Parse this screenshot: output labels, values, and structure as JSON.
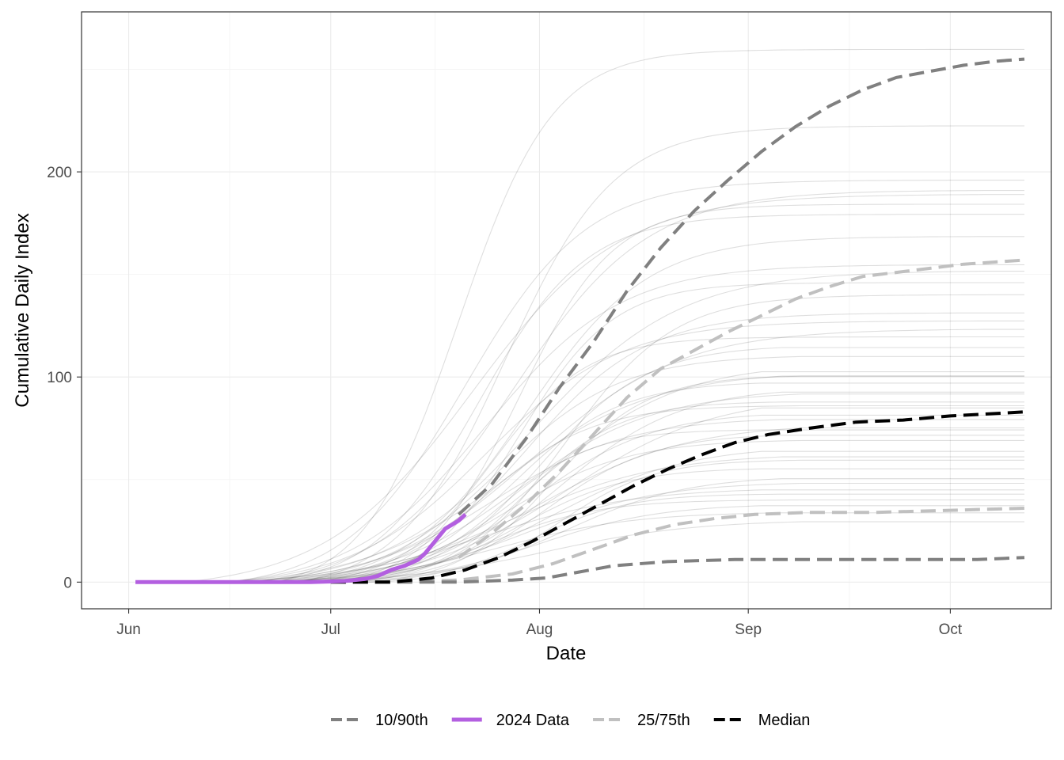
{
  "chart_data": {
    "type": "line",
    "title": "",
    "xlabel": "Date",
    "ylabel": "Cumulative Daily Index",
    "x_ticks": [
      "Jun",
      "Jul",
      "Aug",
      "Sep",
      "Oct"
    ],
    "x_tick_dates": [
      "2024-06-01",
      "2024-07-01",
      "2024-08-01",
      "2024-09-01",
      "2024-10-01"
    ],
    "xlim": [
      "2024-05-25",
      "2024-10-16"
    ],
    "y_ticks": [
      0,
      100,
      200
    ],
    "ylim": [
      -13,
      278
    ],
    "grid": true,
    "legend_position": "bottom",
    "legend": [
      {
        "label": "10/90th",
        "color": "#808080",
        "dash": true
      },
      {
        "label": "2024 Data",
        "color": "#b35fe0",
        "dash": false
      },
      {
        "label": "25/75th",
        "color": "#c0c0c0",
        "dash": true
      },
      {
        "label": "Median",
        "color": "#000000",
        "dash": true
      }
    ],
    "series": [
      {
        "name": "10/90th",
        "role": "upper",
        "color": "#808080",
        "points": [
          [
            "2024-07-20",
            33
          ],
          [
            "2024-07-25",
            48
          ],
          [
            "2024-07-30",
            70
          ],
          [
            "2024-08-04",
            95
          ],
          [
            "2024-08-09",
            117
          ],
          [
            "2024-08-14",
            142
          ],
          [
            "2024-08-19",
            163
          ],
          [
            "2024-08-24",
            181
          ],
          [
            "2024-08-29",
            196
          ],
          [
            "2024-09-03",
            210
          ],
          [
            "2024-09-08",
            222
          ],
          [
            "2024-09-13",
            232
          ],
          [
            "2024-09-18",
            240
          ],
          [
            "2024-09-23",
            246
          ],
          [
            "2024-09-28",
            249
          ],
          [
            "2024-10-03",
            252
          ],
          [
            "2024-10-08",
            254
          ],
          [
            "2024-10-12",
            255
          ]
        ]
      },
      {
        "name": "10/90th",
        "role": "lower",
        "color": "#808080",
        "points": [
          [
            "2024-07-01",
            0
          ],
          [
            "2024-07-10",
            0
          ],
          [
            "2024-07-20",
            0
          ],
          [
            "2024-07-28",
            1
          ],
          [
            "2024-08-02",
            2
          ],
          [
            "2024-08-07",
            5
          ],
          [
            "2024-08-12",
            8
          ],
          [
            "2024-08-20",
            10
          ],
          [
            "2024-08-30",
            11
          ],
          [
            "2024-09-10",
            11
          ],
          [
            "2024-09-25",
            11
          ],
          [
            "2024-10-05",
            11
          ],
          [
            "2024-10-12",
            12
          ]
        ]
      },
      {
        "name": "25/75th",
        "role": "upper",
        "color": "#c0c0c0",
        "points": [
          [
            "2024-07-20",
            12
          ],
          [
            "2024-07-25",
            24
          ],
          [
            "2024-07-30",
            38
          ],
          [
            "2024-08-04",
            54
          ],
          [
            "2024-08-09",
            72
          ],
          [
            "2024-08-14",
            90
          ],
          [
            "2024-08-19",
            104
          ],
          [
            "2024-08-24",
            113
          ],
          [
            "2024-08-29",
            122
          ],
          [
            "2024-09-03",
            130
          ],
          [
            "2024-09-08",
            138
          ],
          [
            "2024-09-13",
            144
          ],
          [
            "2024-09-18",
            149
          ],
          [
            "2024-09-23",
            151
          ],
          [
            "2024-09-28",
            153
          ],
          [
            "2024-10-03",
            155
          ],
          [
            "2024-10-12",
            157
          ]
        ]
      },
      {
        "name": "25/75th",
        "role": "lower",
        "color": "#c0c0c0",
        "points": [
          [
            "2024-07-01",
            0
          ],
          [
            "2024-07-10",
            0
          ],
          [
            "2024-07-20",
            1
          ],
          [
            "2024-07-28",
            4
          ],
          [
            "2024-08-03",
            9
          ],
          [
            "2024-08-09",
            16
          ],
          [
            "2024-08-15",
            23
          ],
          [
            "2024-08-21",
            28
          ],
          [
            "2024-08-27",
            31
          ],
          [
            "2024-09-02",
            33
          ],
          [
            "2024-09-10",
            34
          ],
          [
            "2024-09-20",
            34
          ],
          [
            "2024-10-01",
            35
          ],
          [
            "2024-10-12",
            36
          ]
        ]
      },
      {
        "name": "Median",
        "color": "#000000",
        "points": [
          [
            "2024-07-01",
            0
          ],
          [
            "2024-07-10",
            0
          ],
          [
            "2024-07-16",
            2
          ],
          [
            "2024-07-21",
            6
          ],
          [
            "2024-07-26",
            12
          ],
          [
            "2024-07-31",
            20
          ],
          [
            "2024-08-05",
            29
          ],
          [
            "2024-08-10",
            38
          ],
          [
            "2024-08-15",
            47
          ],
          [
            "2024-08-20",
            55
          ],
          [
            "2024-08-25",
            62
          ],
          [
            "2024-08-30",
            68
          ],
          [
            "2024-09-04",
            72
          ],
          [
            "2024-09-10",
            75
          ],
          [
            "2024-09-17",
            78
          ],
          [
            "2024-09-24",
            79
          ],
          [
            "2024-10-01",
            81
          ],
          [
            "2024-10-12",
            83
          ]
        ]
      },
      {
        "name": "2024 Data",
        "color": "#b35fe0",
        "points": [
          [
            "2024-06-02",
            0
          ],
          [
            "2024-06-15",
            0
          ],
          [
            "2024-06-28",
            0
          ],
          [
            "2024-07-03",
            0.5
          ],
          [
            "2024-07-06",
            1.5
          ],
          [
            "2024-07-08",
            3
          ],
          [
            "2024-07-10",
            6
          ],
          [
            "2024-07-12",
            8
          ],
          [
            "2024-07-14",
            11
          ],
          [
            "2024-07-15",
            14
          ],
          [
            "2024-07-16",
            18
          ],
          [
            "2024-07-17",
            22
          ],
          [
            "2024-07-18",
            26
          ],
          [
            "2024-07-19",
            28
          ],
          [
            "2024-07-20",
            30
          ],
          [
            "2024-07-21",
            33
          ]
        ]
      }
    ],
    "historical_final_values": [
      265,
      227,
      200,
      195,
      193,
      188,
      183,
      172,
      158,
      155,
      149,
      143,
      134,
      130,
      126,
      122,
      118,
      113,
      109,
      105,
      103,
      100,
      97,
      95,
      93,
      90,
      88,
      85,
      82,
      79,
      76,
      74,
      71,
      68,
      64,
      61,
      57,
      53,
      50,
      47,
      44,
      41,
      39,
      35,
      31
    ]
  }
}
